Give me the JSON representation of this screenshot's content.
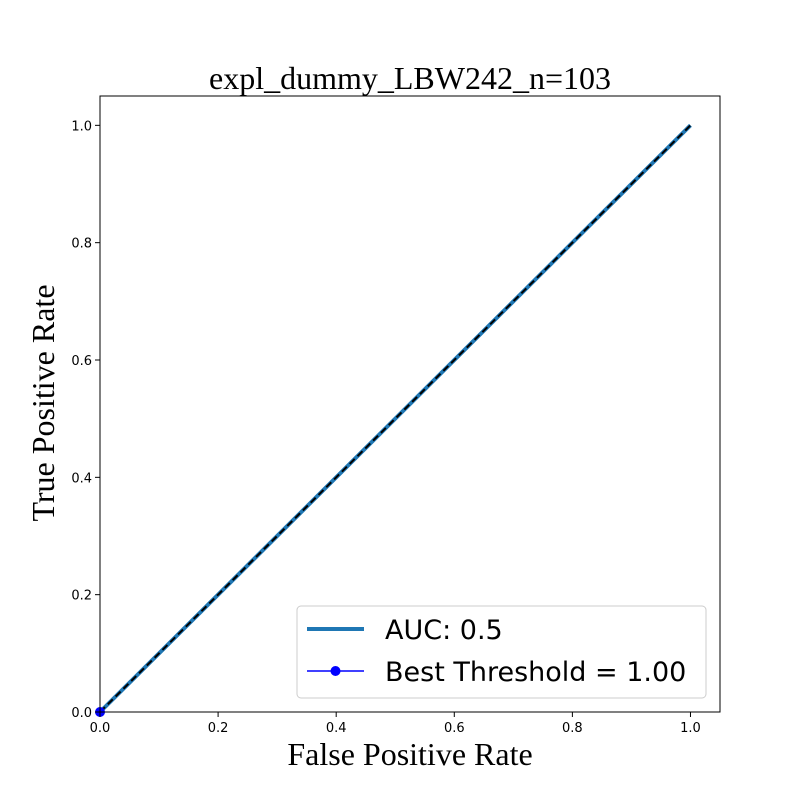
{
  "chart_data": {
    "type": "line",
    "title": "expl_dummy_LBW242_n=103",
    "xlabel": "False Positive Rate",
    "ylabel": "True Positive Rate",
    "xlim": [
      0.0,
      1.05
    ],
    "ylim": [
      0.0,
      1.05
    ],
    "xticks": [
      0.0,
      0.2,
      0.4,
      0.6,
      0.8,
      1.0
    ],
    "yticks": [
      0.0,
      0.2,
      0.4,
      0.6,
      0.8,
      1.0
    ],
    "xtick_labels": [
      "0.0",
      "0.2",
      "0.4",
      "0.6",
      "0.8",
      "1.0"
    ],
    "ytick_labels": [
      "0.0",
      "0.2",
      "0.4",
      "0.6",
      "0.8",
      "1.0"
    ],
    "grid": false,
    "legend_position": "bottom-right",
    "series": [
      {
        "name": "AUC: 0.5",
        "kind": "line",
        "color": "#1f77b4",
        "x": [
          0.0,
          1.0
        ],
        "y": [
          0.0,
          1.0
        ]
      },
      {
        "name": "Best Threshold = 1.00",
        "kind": "line-marker",
        "color": "#0000ff",
        "x": [
          0.0
        ],
        "y": [
          0.0
        ]
      }
    ],
    "reference_line": {
      "style": "dashed",
      "color": "#000000",
      "x": [
        0.0,
        1.0
      ],
      "y": [
        0.0,
        1.0
      ]
    }
  }
}
